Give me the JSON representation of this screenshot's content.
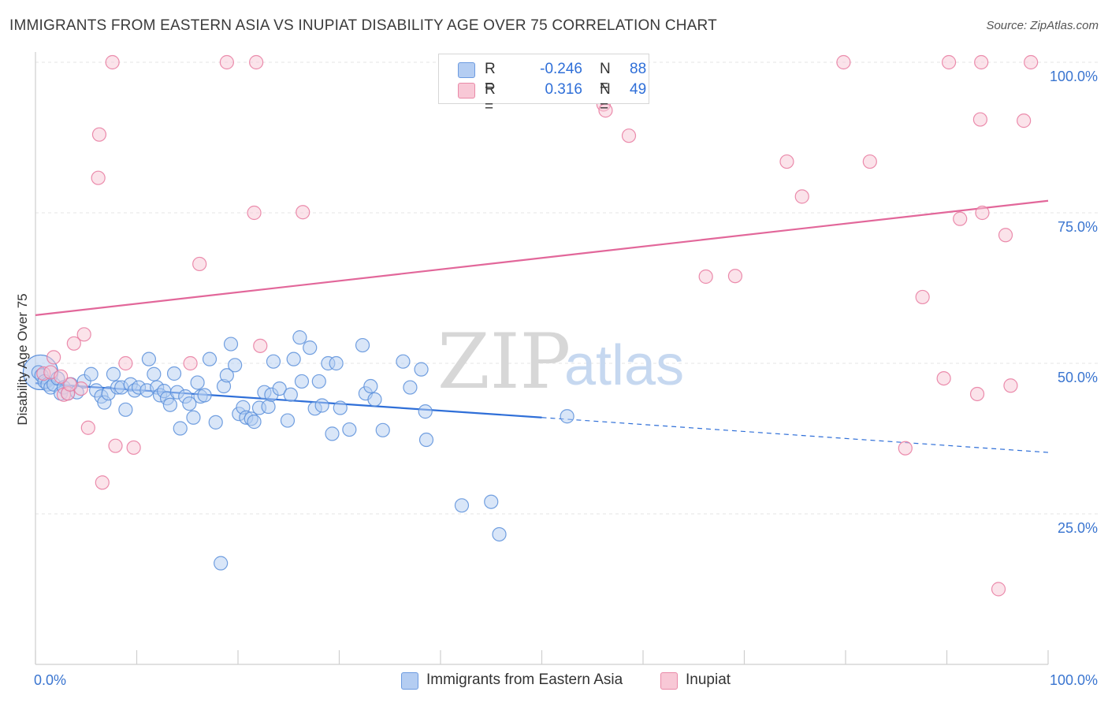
{
  "title": "IMMIGRANTS FROM EASTERN ASIA VS INUPIAT DISABILITY AGE OVER 75 CORRELATION CHART",
  "source": "Source: ZipAtlas.com",
  "watermark": {
    "zip": "ZIP",
    "atlas": "atlas"
  },
  "legend": {
    "r_label": "R =",
    "n_label": "N =",
    "rows": [
      {
        "r": "-0.246",
        "n": "88",
        "color": "#b4cdf2",
        "border": "#6d9be0"
      },
      {
        "r": "0.316",
        "n": "49",
        "color": "#f8c8d6",
        "border": "#e98aa8"
      }
    ]
  },
  "chart_data": {
    "type": "scatter",
    "ylabel": "Disability Age Over 75",
    "xlim": [
      0,
      100
    ],
    "ylim": [
      0,
      100
    ],
    "x_tick_labels": [
      "0.0%",
      "100.0%"
    ],
    "y_ticks": [
      25,
      50,
      75,
      100
    ],
    "y_tick_labels": [
      "25.0%",
      "50.0%",
      "75.0%",
      "100.0%"
    ],
    "grid": true,
    "legend_position": "top-center",
    "series": [
      {
        "name": "Immigrants from Eastern Asia",
        "color": "#5b8fdb",
        "fill": "#b4cdf2",
        "trend": {
          "x0": 0,
          "y0": 46.7,
          "x1": 50,
          "y1": 41.0,
          "dash_to_x": 100,
          "dash_to_y": 35.2
        },
        "points": [
          [
            0.3,
            48.5
          ],
          [
            0.6,
            48
          ],
          [
            0.9,
            47
          ],
          [
            1.2,
            46.5
          ],
          [
            1.5,
            46
          ],
          [
            1.8,
            46.5
          ],
          [
            2.2,
            47.5
          ],
          [
            2.5,
            45
          ],
          [
            2.8,
            46
          ],
          [
            3.2,
            45
          ],
          [
            3.5,
            46.5
          ],
          [
            4.1,
            45.2
          ],
          [
            4.8,
            47
          ],
          [
            5.5,
            48.2
          ],
          [
            6,
            45.5
          ],
          [
            6.5,
            44.5
          ],
          [
            6.8,
            43.5
          ],
          [
            7.2,
            45
          ],
          [
            7.7,
            48.2
          ],
          [
            8.1,
            46
          ],
          [
            8.5,
            46
          ],
          [
            8.9,
            42.3
          ],
          [
            9.4,
            46.5
          ],
          [
            9.8,
            45.5
          ],
          [
            10.2,
            46
          ],
          [
            11,
            45.5
          ],
          [
            11.2,
            50.7
          ],
          [
            11.7,
            48.2
          ],
          [
            12,
            46
          ],
          [
            12.3,
            44.7
          ],
          [
            12.7,
            45.4
          ],
          [
            13,
            44.2
          ],
          [
            13.3,
            43.1
          ],
          [
            13.7,
            48.3
          ],
          [
            14,
            45.2
          ],
          [
            14.3,
            39.2
          ],
          [
            14.8,
            44.5
          ],
          [
            15.2,
            43.3
          ],
          [
            15.6,
            41
          ],
          [
            16,
            46.8
          ],
          [
            16.3,
            44.5
          ],
          [
            16.7,
            44.7
          ],
          [
            17.2,
            50.7
          ],
          [
            17.8,
            40.2
          ],
          [
            18.3,
            16.8
          ],
          [
            18.6,
            46.2
          ],
          [
            18.9,
            48
          ],
          [
            19.3,
            53.2
          ],
          [
            19.7,
            49.7
          ],
          [
            20.1,
            41.6
          ],
          [
            20.5,
            42.7
          ],
          [
            20.8,
            41
          ],
          [
            21.3,
            40.8
          ],
          [
            21.6,
            40.3
          ],
          [
            22.1,
            42.6
          ],
          [
            22.6,
            45.2
          ],
          [
            23,
            42.8
          ],
          [
            23.3,
            44.8
          ],
          [
            23.5,
            50.3
          ],
          [
            24.1,
            45.8
          ],
          [
            24.9,
            40.5
          ],
          [
            25.2,
            44.8
          ],
          [
            25.5,
            50.7
          ],
          [
            26.1,
            54.3
          ],
          [
            26.3,
            47
          ],
          [
            27.1,
            52.6
          ],
          [
            27.6,
            42.5
          ],
          [
            28,
            47
          ],
          [
            28.3,
            43
          ],
          [
            28.9,
            50
          ],
          [
            29.3,
            38.3
          ],
          [
            29.7,
            50
          ],
          [
            30.1,
            42.6
          ],
          [
            31,
            39
          ],
          [
            32.3,
            53
          ],
          [
            32.6,
            45
          ],
          [
            33.1,
            46.2
          ],
          [
            34.3,
            38.9
          ],
          [
            36.3,
            50.3
          ],
          [
            38.1,
            49
          ],
          [
            38.6,
            37.3
          ],
          [
            42.1,
            26.4
          ],
          [
            52.5,
            41.2
          ],
          [
            45,
            27
          ],
          [
            38.5,
            42
          ],
          [
            33.5,
            44
          ],
          [
            37,
            46
          ],
          [
            45.8,
            21.6
          ]
        ],
        "big_point": [
          0.5,
          48.5
        ]
      },
      {
        "name": "Inupiat",
        "color": "#e8799f",
        "fill": "#f8c8d6",
        "trend": {
          "x0": 0,
          "y0": 58.0,
          "x1": 100,
          "y1": 77.0
        },
        "points": [
          [
            0.8,
            48.3
          ],
          [
            1.5,
            48.5
          ],
          [
            1.8,
            51
          ],
          [
            2.8,
            44.8
          ],
          [
            3.2,
            45
          ],
          [
            3.8,
            53.3
          ],
          [
            4.5,
            45.8
          ],
          [
            4.8,
            54.8
          ],
          [
            5.2,
            39.3
          ],
          [
            6.2,
            80.8
          ],
          [
            6.3,
            88
          ],
          [
            6.6,
            30.2
          ],
          [
            7.6,
            100
          ],
          [
            7.9,
            36.3
          ],
          [
            8.9,
            50
          ],
          [
            9.7,
            36
          ],
          [
            15.3,
            50
          ],
          [
            16.2,
            66.5
          ],
          [
            18.9,
            100
          ],
          [
            21.6,
            75
          ],
          [
            21.8,
            100
          ],
          [
            22.2,
            52.9
          ],
          [
            26.4,
            75.1
          ],
          [
            52.8,
            95.7
          ],
          [
            56.1,
            93
          ],
          [
            56.3,
            92
          ],
          [
            58.6,
            87.8
          ],
          [
            66.2,
            64.4
          ],
          [
            69.1,
            64.5
          ],
          [
            74.2,
            83.5
          ],
          [
            75.7,
            77.7
          ],
          [
            79.8,
            100
          ],
          [
            82.4,
            83.5
          ],
          [
            85.9,
            35.9
          ],
          [
            87.6,
            61
          ],
          [
            89.7,
            47.5
          ],
          [
            90.2,
            100
          ],
          [
            91.3,
            74
          ],
          [
            93,
            44.9
          ],
          [
            93.3,
            90.5
          ],
          [
            93.4,
            100
          ],
          [
            93.5,
            75
          ],
          [
            95.1,
            12.5
          ],
          [
            95.8,
            71.3
          ],
          [
            96.3,
            46.3
          ],
          [
            97.6,
            90.3
          ],
          [
            98.3,
            100
          ],
          [
            3.4,
            46.5
          ],
          [
            2.5,
            47.8
          ]
        ]
      }
    ]
  }
}
